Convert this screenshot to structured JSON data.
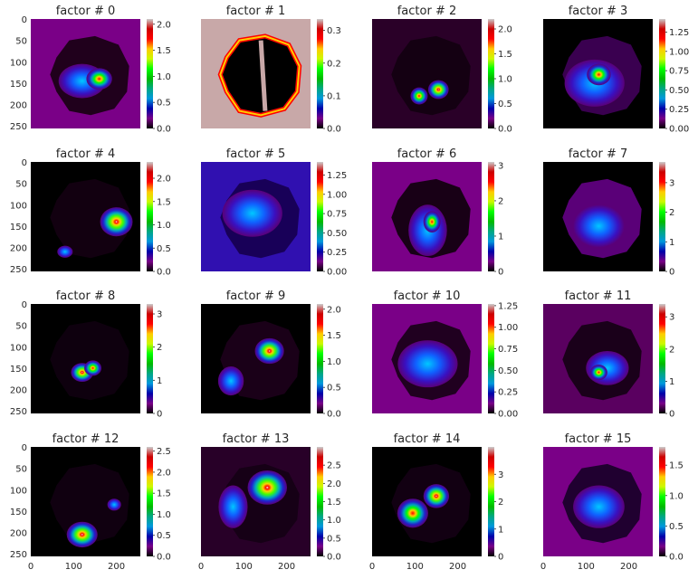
{
  "colors": {
    "background": "#ffffff",
    "text": "#262626",
    "spectral": [
      "#000000",
      "#7a0087",
      "#0000aa",
      "#0098dd",
      "#00a884",
      "#00bb00",
      "#00ff00",
      "#ccf900",
      "#ffcc00",
      "#ff0000",
      "#cc0000",
      "#cccccc"
    ]
  },
  "chart_data": [
    {
      "type": "heatmap",
      "title": "factor # 0",
      "xlim": [
        0,
        256
      ],
      "ylim": [
        256,
        0
      ],
      "colorbar": {
        "vmin": 0,
        "vmax": 2.1,
        "ticks": [
          "0.0",
          "0.5",
          "1.0",
          "1.5",
          "2.0"
        ]
      },
      "yticks": [
        "0",
        "50",
        "100",
        "150",
        "200",
        "250"
      ],
      "xticks": []
    },
    {
      "type": "heatmap",
      "title": "factor # 1",
      "xlim": [
        0,
        256
      ],
      "ylim": [
        256,
        0
      ],
      "colorbar": {
        "vmin": 0,
        "vmax": 0.335,
        "ticks": [
          "0.0",
          "0.1",
          "0.2",
          "0.3"
        ]
      },
      "yticks": [],
      "xticks": []
    },
    {
      "type": "heatmap",
      "title": "factor # 2",
      "xlim": [
        0,
        256
      ],
      "ylim": [
        256,
        0
      ],
      "colorbar": {
        "vmin": 0,
        "vmax": 2.2,
        "ticks": [
          "0.0",
          "0.5",
          "1.0",
          "1.5",
          "2.0"
        ]
      },
      "yticks": [],
      "xticks": []
    },
    {
      "type": "heatmap",
      "title": "factor # 3",
      "xlim": [
        0,
        256
      ],
      "ylim": [
        256,
        0
      ],
      "colorbar": {
        "vmin": 0,
        "vmax": 1.42,
        "ticks": [
          "0.00",
          "0.25",
          "0.50",
          "0.75",
          "1.00",
          "1.25"
        ]
      },
      "yticks": [],
      "xticks": []
    },
    {
      "type": "heatmap",
      "title": "factor # 4",
      "xlim": [
        0,
        256
      ],
      "ylim": [
        256,
        0
      ],
      "colorbar": {
        "vmin": 0,
        "vmax": 2.35,
        "ticks": [
          "0.0",
          "0.5",
          "1.0",
          "1.5",
          "2.0"
        ]
      },
      "yticks": [
        "0",
        "50",
        "100",
        "150",
        "200",
        "250"
      ],
      "xticks": []
    },
    {
      "type": "heatmap",
      "title": "factor # 5",
      "xlim": [
        0,
        256
      ],
      "ylim": [
        256,
        0
      ],
      "colorbar": {
        "vmin": 0,
        "vmax": 1.42,
        "ticks": [
          "0.00",
          "0.25",
          "0.50",
          "0.75",
          "1.00",
          "1.25"
        ]
      },
      "yticks": [],
      "xticks": []
    },
    {
      "type": "heatmap",
      "title": "factor # 6",
      "xlim": [
        0,
        256
      ],
      "ylim": [
        256,
        0
      ],
      "colorbar": {
        "vmin": 0,
        "vmax": 3.1,
        "ticks": [
          "0",
          "1",
          "2",
          "3"
        ]
      },
      "yticks": [],
      "xticks": []
    },
    {
      "type": "heatmap",
      "title": "factor # 7",
      "xlim": [
        0,
        256
      ],
      "ylim": [
        256,
        0
      ],
      "colorbar": {
        "vmin": 0,
        "vmax": 3.7,
        "ticks": [
          "0",
          "1",
          "2",
          "3"
        ]
      },
      "yticks": [],
      "xticks": []
    },
    {
      "type": "heatmap",
      "title": "factor # 8",
      "xlim": [
        0,
        256
      ],
      "ylim": [
        256,
        0
      ],
      "colorbar": {
        "vmin": 0,
        "vmax": 3.3,
        "ticks": [
          "0",
          "1",
          "2",
          "3"
        ]
      },
      "yticks": [
        "0",
        "50",
        "100",
        "150",
        "200",
        "250"
      ],
      "xticks": []
    },
    {
      "type": "heatmap",
      "title": "factor # 9",
      "xlim": [
        0,
        256
      ],
      "ylim": [
        256,
        0
      ],
      "colorbar": {
        "vmin": 0,
        "vmax": 2.1,
        "ticks": [
          "0.0",
          "0.5",
          "1.0",
          "1.5",
          "2.0"
        ]
      },
      "yticks": [],
      "xticks": []
    },
    {
      "type": "heatmap",
      "title": "factor # 10",
      "xlim": [
        0,
        256
      ],
      "ylim": [
        256,
        0
      ],
      "colorbar": {
        "vmin": 0,
        "vmax": 1.27,
        "ticks": [
          "0.00",
          "0.25",
          "0.50",
          "0.75",
          "1.00",
          "1.25"
        ]
      },
      "yticks": [],
      "xticks": []
    },
    {
      "type": "heatmap",
      "title": "factor # 11",
      "xlim": [
        0,
        256
      ],
      "ylim": [
        256,
        0
      ],
      "colorbar": {
        "vmin": 0,
        "vmax": 3.4,
        "ticks": [
          "0",
          "1",
          "2",
          "3"
        ]
      },
      "yticks": [],
      "xticks": []
    },
    {
      "type": "heatmap",
      "title": "factor # 12",
      "xlim": [
        0,
        256
      ],
      "ylim": [
        256,
        0
      ],
      "colorbar": {
        "vmin": 0,
        "vmax": 2.6,
        "ticks": [
          "0.0",
          "0.5",
          "1.0",
          "1.5",
          "2.0",
          "2.5"
        ]
      },
      "yticks": [
        "0",
        "50",
        "100",
        "150",
        "200",
        "250"
      ],
      "xticks": [
        "0",
        "100",
        "200"
      ]
    },
    {
      "type": "heatmap",
      "title": "factor # 13",
      "xlim": [
        0,
        256
      ],
      "ylim": [
        256,
        0
      ],
      "colorbar": {
        "vmin": 0,
        "vmax": 3.0,
        "ticks": [
          "0.0",
          "0.5",
          "1.0",
          "1.5",
          "2.0",
          "2.5"
        ]
      },
      "yticks": [],
      "xticks": [
        "0",
        "100",
        "200"
      ]
    },
    {
      "type": "heatmap",
      "title": "factor # 14",
      "xlim": [
        0,
        256
      ],
      "ylim": [
        256,
        0
      ],
      "colorbar": {
        "vmin": 0,
        "vmax": 4.0,
        "ticks": [
          "0",
          "1",
          "2",
          "3"
        ]
      },
      "yticks": [],
      "xticks": [
        "0",
        "100",
        "200"
      ]
    },
    {
      "type": "heatmap",
      "title": "factor # 15",
      "xlim": [
        0,
        256
      ],
      "ylim": [
        256,
        0
      ],
      "colorbar": {
        "vmin": 0,
        "vmax": 1.8,
        "ticks": [
          "0.0",
          "0.5",
          "1.0",
          "1.5"
        ]
      },
      "yticks": [],
      "xticks": [
        "0",
        "100",
        "200"
      ]
    }
  ]
}
